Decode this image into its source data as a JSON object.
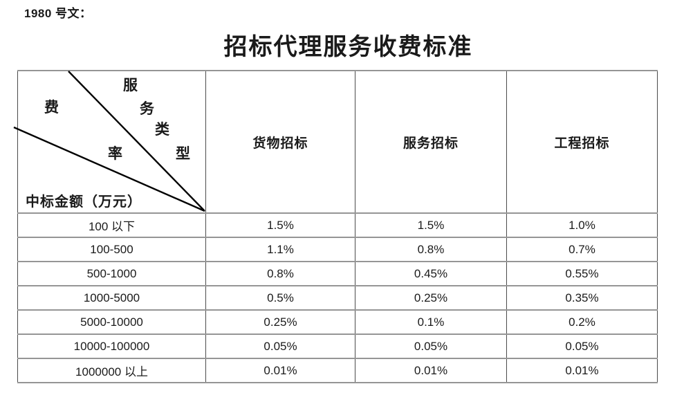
{
  "document": {
    "doc_number_label": "1980 号文：",
    "title": "招标代理服务收费标准"
  },
  "table": {
    "corner": {
      "service_type_chars": [
        "服",
        "务",
        "类",
        "型"
      ],
      "fee_rate_chars": [
        "费",
        "率"
      ],
      "amount_label": "中标金额（万元）"
    },
    "column_headers": [
      "货物招标",
      "服务招标",
      "工程招标"
    ],
    "rows": [
      {
        "range": "100 以下",
        "values": [
          "1.5%",
          "1.5%",
          "1.0%"
        ]
      },
      {
        "range": "100-500",
        "values": [
          "1.1%",
          "0.8%",
          "0.7%"
        ]
      },
      {
        "range": "500-1000",
        "values": [
          "0.8%",
          "0.45%",
          "0.55%"
        ]
      },
      {
        "range": "1000-5000",
        "values": [
          "0.5%",
          "0.25%",
          "0.35%"
        ]
      },
      {
        "range": "5000-10000",
        "values": [
          "0.25%",
          "0.1%",
          "0.2%"
        ]
      },
      {
        "range": "10000-100000",
        "values": [
          "0.05%",
          "0.05%",
          "0.05%"
        ]
      },
      {
        "range": "1000000 以上",
        "values": [
          "0.01%",
          "0.01%",
          "0.01%"
        ]
      }
    ]
  },
  "colors": {
    "background": "#ffffff",
    "text": "#1a1a1a",
    "grid_horizontal": "#959595",
    "grid_vertical": "#4a4a4a",
    "diagonal_line": "#000000"
  }
}
